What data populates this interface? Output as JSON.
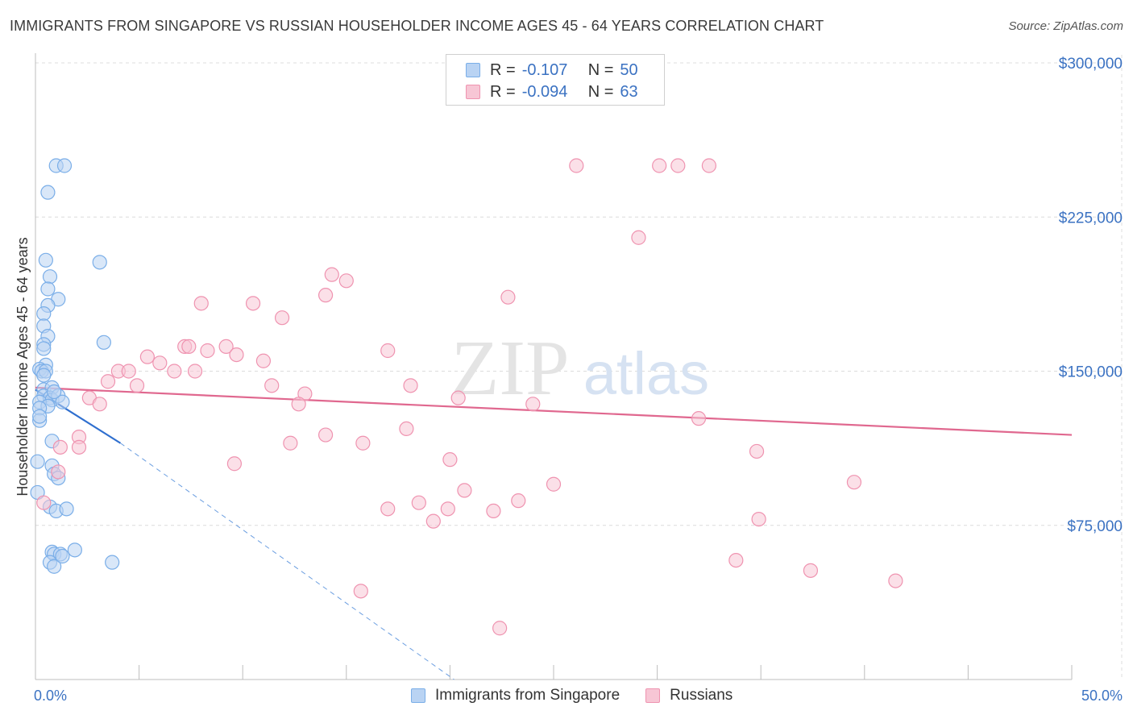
{
  "title": "IMMIGRANTS FROM SINGAPORE VS RUSSIAN HOUSEHOLDER INCOME AGES 45 - 64 YEARS CORRELATION CHART",
  "source": "Source: ZipAtlas.com",
  "watermark": {
    "zip": "ZIP",
    "atlas": "atlas"
  },
  "legend": {
    "r_label": "R =",
    "n_label": "N =",
    "series": [
      {
        "r": "-0.107",
        "n": "50"
      },
      {
        "r": "-0.094",
        "n": "63"
      }
    ]
  },
  "chart_data": {
    "type": "scatter",
    "title": "IMMIGRANTS FROM SINGAPORE VS RUSSIAN HOUSEHOLDER INCOME AGES 45 - 64 YEARS CORRELATION CHART",
    "xlabel": "",
    "ylabel": "Householder Income Ages 45 - 64 years",
    "xlim": [
      0,
      50
    ],
    "ylim": [
      0,
      300000
    ],
    "x_tick_labels": [
      "0.0%",
      "50.0%"
    ],
    "y_ticks": [
      75000,
      150000,
      225000,
      300000
    ],
    "y_tick_labels": [
      "$75,000",
      "$150,000",
      "$225,000",
      "$300,000"
    ],
    "grid": true,
    "legend_position": "top-center",
    "series": [
      {
        "name": "Immigrants from Singapore",
        "color": "#7aaee8",
        "fill": "#b9d3f3",
        "trend": {
          "x0": 0,
          "y0": 141000,
          "x1": 4.1,
          "y1": 115000,
          "dashed_to_x": 20.2,
          "dashed_to_y": 0
        },
        "points": [
          [
            1.0,
            250000
          ],
          [
            1.4,
            250000
          ],
          [
            0.6,
            237000
          ],
          [
            0.5,
            204000
          ],
          [
            3.1,
            203000
          ],
          [
            0.7,
            196000
          ],
          [
            0.6,
            190000
          ],
          [
            1.1,
            185000
          ],
          [
            0.6,
            182000
          ],
          [
            0.4,
            178000
          ],
          [
            0.4,
            172000
          ],
          [
            0.6,
            167000
          ],
          [
            0.4,
            163000
          ],
          [
            3.3,
            164000
          ],
          [
            0.4,
            161000
          ],
          [
            0.5,
            153000
          ],
          [
            0.2,
            151000
          ],
          [
            0.3,
            150000
          ],
          [
            0.5,
            150000
          ],
          [
            0.4,
            141000
          ],
          [
            0.8,
            142000
          ],
          [
            0.4,
            138000
          ],
          [
            0.7,
            137000
          ],
          [
            0.8,
            136000
          ],
          [
            1.1,
            138000
          ],
          [
            1.3,
            135000
          ],
          [
            0.2,
            135000
          ],
          [
            0.6,
            133000
          ],
          [
            0.2,
            132000
          ],
          [
            0.2,
            126000
          ],
          [
            0.8,
            116000
          ],
          [
            0.1,
            106000
          ],
          [
            0.8,
            104000
          ],
          [
            0.9,
            100000
          ],
          [
            1.1,
            98000
          ],
          [
            0.1,
            91000
          ],
          [
            0.7,
            84000
          ],
          [
            1.0,
            82000
          ],
          [
            1.5,
            83000
          ],
          [
            0.8,
            62000
          ],
          [
            1.9,
            63000
          ],
          [
            0.9,
            61000
          ],
          [
            1.2,
            61000
          ],
          [
            0.7,
            57000
          ],
          [
            0.9,
            55000
          ],
          [
            3.7,
            57000
          ],
          [
            1.3,
            60000
          ],
          [
            0.2,
            128000
          ],
          [
            0.4,
            148000
          ],
          [
            0.9,
            140000
          ]
        ]
      },
      {
        "name": "Russians",
        "color": "#ef93b0",
        "fill": "#f7c6d5",
        "trend": {
          "x0": 0,
          "y0": 142000,
          "x1": 50,
          "y1": 119000
        },
        "points": [
          [
            26.1,
            250000
          ],
          [
            30.1,
            250000
          ],
          [
            31.0,
            250000
          ],
          [
            32.5,
            250000
          ],
          [
            29.1,
            215000
          ],
          [
            14.3,
            197000
          ],
          [
            15.0,
            194000
          ],
          [
            14.0,
            187000
          ],
          [
            22.8,
            186000
          ],
          [
            8.0,
            183000
          ],
          [
            10.5,
            183000
          ],
          [
            11.9,
            176000
          ],
          [
            7.2,
            162000
          ],
          [
            7.4,
            162000
          ],
          [
            8.3,
            160000
          ],
          [
            9.2,
            162000
          ],
          [
            9.7,
            158000
          ],
          [
            5.4,
            157000
          ],
          [
            6.0,
            154000
          ],
          [
            11.0,
            155000
          ],
          [
            17.0,
            160000
          ],
          [
            4.0,
            150000
          ],
          [
            4.5,
            150000
          ],
          [
            6.7,
            150000
          ],
          [
            7.7,
            150000
          ],
          [
            3.5,
            145000
          ],
          [
            4.9,
            143000
          ],
          [
            11.4,
            143000
          ],
          [
            18.1,
            143000
          ],
          [
            2.6,
            137000
          ],
          [
            13.0,
            139000
          ],
          [
            12.7,
            134000
          ],
          [
            20.4,
            137000
          ],
          [
            3.1,
            134000
          ],
          [
            24.0,
            134000
          ],
          [
            32.0,
            127000
          ],
          [
            17.9,
            122000
          ],
          [
            14.0,
            119000
          ],
          [
            12.3,
            115000
          ],
          [
            15.8,
            115000
          ],
          [
            2.1,
            118000
          ],
          [
            2.1,
            113000
          ],
          [
            1.2,
            113000
          ],
          [
            9.6,
            105000
          ],
          [
            20.0,
            107000
          ],
          [
            34.8,
            111000
          ],
          [
            39.5,
            96000
          ],
          [
            25.0,
            95000
          ],
          [
            20.7,
            92000
          ],
          [
            1.1,
            101000
          ],
          [
            17.0,
            83000
          ],
          [
            18.5,
            86000
          ],
          [
            19.9,
            83000
          ],
          [
            22.1,
            82000
          ],
          [
            23.3,
            87000
          ],
          [
            34.9,
            78000
          ],
          [
            19.2,
            77000
          ],
          [
            0.4,
            86000
          ],
          [
            33.8,
            58000
          ],
          [
            37.4,
            53000
          ],
          [
            41.5,
            48000
          ],
          [
            15.7,
            43000
          ],
          [
            22.4,
            25000
          ]
        ]
      }
    ]
  },
  "bottom_legend": [
    "Immigrants from Singapore",
    "Russians"
  ]
}
